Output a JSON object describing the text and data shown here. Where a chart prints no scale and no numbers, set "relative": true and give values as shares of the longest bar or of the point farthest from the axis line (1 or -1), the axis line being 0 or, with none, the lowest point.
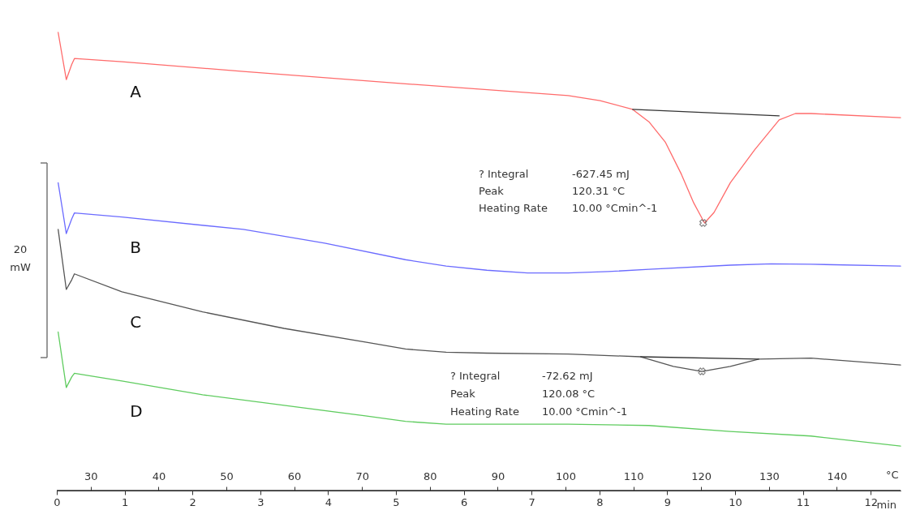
{
  "chart_data": {
    "type": "line",
    "relative": true,
    "xlabel": "min",
    "x2label": "°C",
    "xlim": [
      0,
      12.44
    ],
    "xticks": [
      0,
      1,
      2,
      3,
      4,
      5,
      6,
      7,
      8,
      9,
      10,
      11,
      12
    ],
    "x2lim": [
      25,
      149.4
    ],
    "x2ticks": [
      30,
      40,
      50,
      60,
      70,
      80,
      90,
      100,
      110,
      120,
      130,
      140
    ],
    "grid": false,
    "line_style": "solid",
    "series": [
      {
        "name": "A",
        "color": "#ff6b6b",
        "x": [
          0.02,
          0.14,
          0.22,
          0.26,
          0.96,
          2.75,
          5.14,
          7.54,
          8.01,
          8.49,
          8.73,
          8.97,
          9.21,
          9.39,
          9.55,
          9.69,
          9.93,
          10.29,
          10.65,
          10.89,
          11.12,
          12.44
        ],
        "values": [
          1,
          0.897,
          0.93,
          0.943,
          0.936,
          0.915,
          0.888,
          0.862,
          0.851,
          0.832,
          0.805,
          0.761,
          0.69,
          0.628,
          0.584,
          0.607,
          0.672,
          0.744,
          0.809,
          0.823,
          0.823,
          0.814
        ]
      },
      {
        "name": "B",
        "color": "#6b6bff",
        "x": [
          0.02,
          0.14,
          0.22,
          0.26,
          0.96,
          2.75,
          3.95,
          5.14,
          5.74,
          6.34,
          6.94,
          7.54,
          8.13,
          8.73,
          9.93,
          10.53,
          11.12,
          12.44
        ],
        "values": [
          0.672,
          0.561,
          0.593,
          0.606,
          0.597,
          0.57,
          0.54,
          0.504,
          0.49,
          0.481,
          0.475,
          0.475,
          0.478,
          0.483,
          0.492,
          0.495,
          0.494,
          0.49
        ]
      },
      {
        "name": "C",
        "color": "#555555",
        "x": [
          0.02,
          0.14,
          0.22,
          0.26,
          0.96,
          2.15,
          3.35,
          4.55,
          5.14,
          5.74,
          6.34,
          7.54,
          8.61,
          9.09,
          9.51,
          9.93,
          10.35,
          11.12,
          12.44
        ],
        "values": [
          0.57,
          0.439,
          0.46,
          0.473,
          0.434,
          0.39,
          0.354,
          0.324,
          0.309,
          0.302,
          0.3,
          0.298,
          0.292,
          0.271,
          0.26,
          0.271,
          0.287,
          0.289,
          0.274
        ]
      },
      {
        "name": "D",
        "color": "#5fcc5f",
        "x": [
          0.02,
          0.14,
          0.22,
          0.26,
          0.96,
          2.15,
          3.35,
          4.55,
          5.14,
          5.74,
          7.54,
          8.73,
          9.93,
          11.12,
          12.44
        ],
        "values": [
          0.346,
          0.225,
          0.248,
          0.256,
          0.239,
          0.209,
          0.186,
          0.163,
          0.151,
          0.145,
          0.145,
          0.142,
          0.129,
          0.119,
          0.097
        ]
      },
      {
        "type": "line",
        "color": "#333333",
        "x": [
          8.49,
          10.65
        ],
        "values": [
          0.832,
          0.818
        ]
      },
      {
        "type": "line",
        "color": "#333333",
        "x": [
          8.61,
          10.35
        ],
        "values": [
          0.292,
          0.287
        ]
      },
      {
        "type": "scatter",
        "marker": "cross",
        "color": "#555555",
        "x": [
          9.53,
          9.51
        ],
        "values": [
          0.584,
          0.26
        ]
      }
    ],
    "annotations": [
      "? Integral",
      "-627.45 mJ",
      "Peak",
      "120.31 °C",
      "Heating Rate",
      "10.00 °Cmin^-1",
      "? Integral",
      "-72.62 mJ",
      "Peak",
      "120.08 °C",
      "Heating Rate",
      "10.00 °Cmin^-1",
      "20\nmW"
    ]
  }
}
